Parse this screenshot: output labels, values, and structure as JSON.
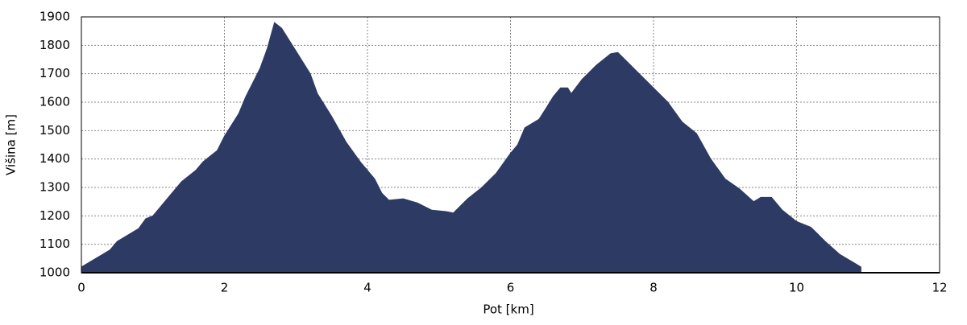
{
  "chart_data": {
    "type": "area",
    "xlabel": "Pot [km]",
    "ylabel": "Višina [m]",
    "color": "#2d3a64",
    "grid": true,
    "xlim": [
      0,
      12
    ],
    "xticks": [
      0,
      2,
      4,
      6,
      8,
      10,
      12
    ],
    "ylim": [
      1000,
      1900
    ],
    "yticks": [
      1000,
      1100,
      1200,
      1300,
      1400,
      1500,
      1600,
      1700,
      1800,
      1900
    ],
    "x": [
      0,
      0.2,
      0.3,
      0.4,
      0.5,
      0.6,
      0.8,
      0.9,
      1.0,
      1.2,
      1.4,
      1.6,
      1.7,
      1.9,
      2.0,
      2.2,
      2.3,
      2.5,
      2.6,
      2.7,
      2.8,
      3.0,
      3.2,
      3.3,
      3.5,
      3.7,
      3.9,
      4.1,
      4.2,
      4.3,
      4.5,
      4.7,
      4.9,
      5.1,
      5.2,
      5.4,
      5.6,
      5.8,
      6.0,
      6.1,
      6.2,
      6.4,
      6.5,
      6.6,
      6.7,
      6.8,
      6.85,
      7.0,
      7.2,
      7.4,
      7.5,
      7.6,
      7.8,
      8.0,
      8.2,
      8.4,
      8.6,
      8.8,
      9.0,
      9.2,
      9.4,
      9.5,
      9.65,
      9.8,
      10.0,
      10.2,
      10.4,
      10.6,
      10.8,
      10.9
    ],
    "values": [
      1020,
      1050,
      1065,
      1080,
      1110,
      1125,
      1155,
      1190,
      1200,
      1260,
      1320,
      1360,
      1390,
      1430,
      1480,
      1560,
      1620,
      1720,
      1790,
      1880,
      1860,
      1780,
      1700,
      1630,
      1550,
      1460,
      1390,
      1330,
      1280,
      1255,
      1260,
      1245,
      1220,
      1215,
      1210,
      1260,
      1300,
      1350,
      1420,
      1450,
      1510,
      1540,
      1580,
      1620,
      1650,
      1650,
      1630,
      1680,
      1730,
      1770,
      1775,
      1750,
      1700,
      1650,
      1600,
      1530,
      1490,
      1400,
      1330,
      1295,
      1250,
      1265,
      1265,
      1220,
      1180,
      1160,
      1110,
      1065,
      1035,
      1020
    ]
  }
}
